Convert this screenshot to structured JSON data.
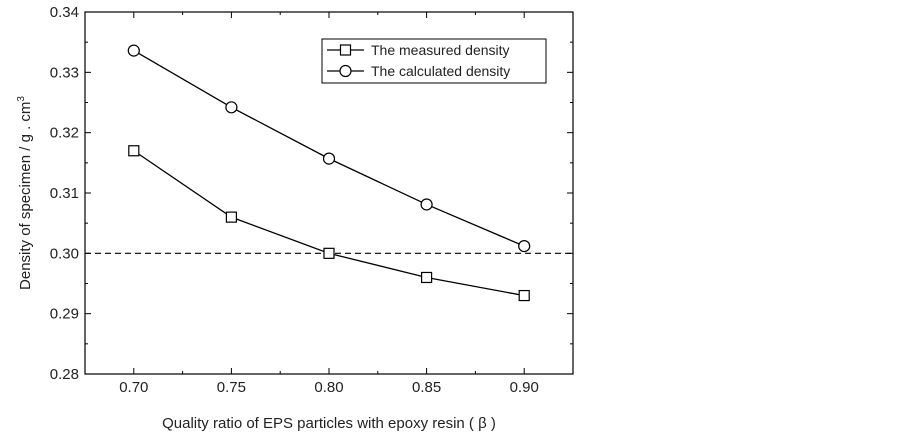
{
  "chart_data": {
    "type": "line",
    "title": "",
    "xlabel": "Quality ratio of EPS particles with epoxy resin ( β )",
    "ylabel": "Density of specimen / g . cm",
    "ylabel_superscript": "3",
    "xlim": [
      0.675,
      0.925
    ],
    "ylim": [
      0.28,
      0.34
    ],
    "x_ticks": [
      "0.70",
      "0.75",
      "0.80",
      "0.85",
      "0.90"
    ],
    "y_ticks": [
      "0.28",
      "0.29",
      "0.30",
      "0.31",
      "0.32",
      "0.33",
      "0.34"
    ],
    "x": [
      0.7,
      0.75,
      0.8,
      0.85,
      0.9
    ],
    "series": [
      {
        "name": "The measured density",
        "marker": "square",
        "values": [
          0.317,
          0.306,
          0.3,
          0.296,
          0.293
        ]
      },
      {
        "name": "The calculated density",
        "marker": "circle",
        "values": [
          0.3336,
          0.3242,
          0.3157,
          0.3081,
          0.3012
        ]
      }
    ],
    "reference_line": {
      "y": 0.3,
      "style": "dashed"
    },
    "grid": false,
    "legend_position": "top-right",
    "colors": {
      "line": "#000000",
      "marker_fill": "#ffffff",
      "axis": "#000000"
    }
  }
}
